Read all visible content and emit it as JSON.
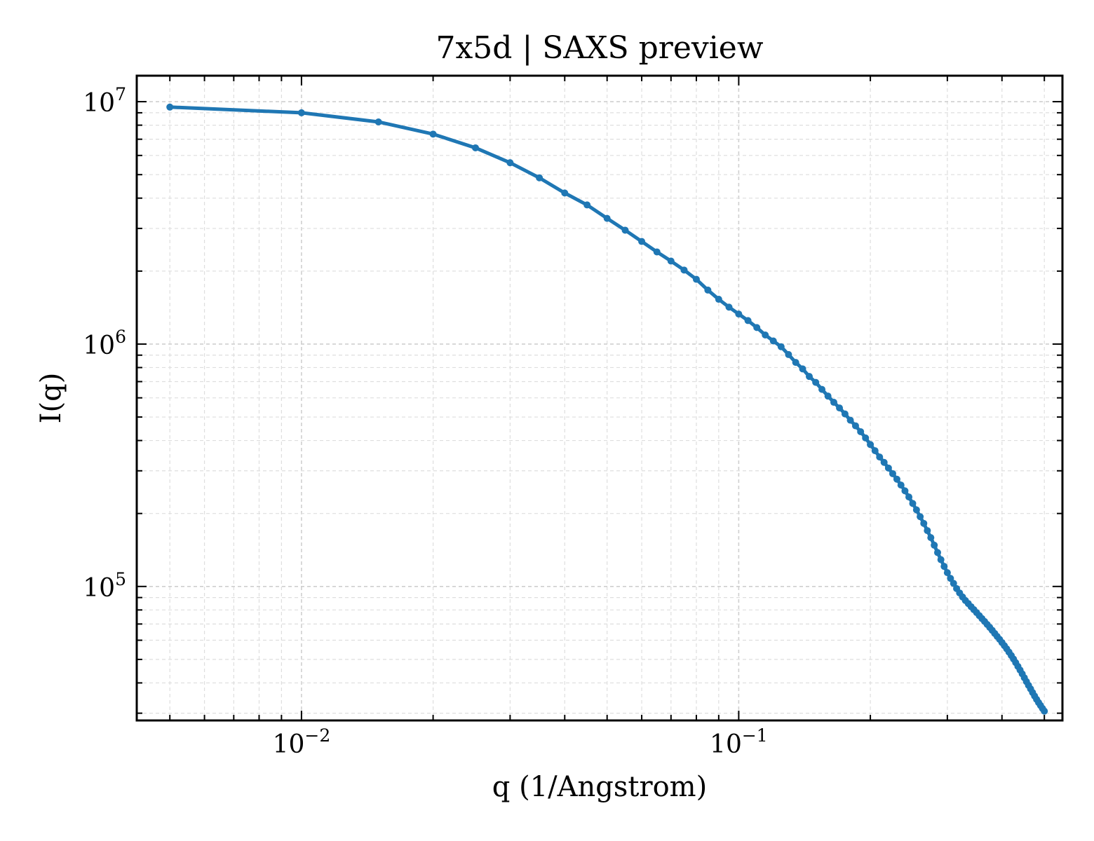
{
  "chart_data": {
    "type": "line",
    "title": "7x5d | SAXS preview",
    "xlabel": "q (1/Angstrom)",
    "ylabel": "I(q)",
    "x_scale": "log",
    "y_scale": "log",
    "xlim": [
      0.0042,
      0.55
    ],
    "ylim": [
      28000,
      12800000
    ],
    "grid": true,
    "x_ticks": [
      {
        "value": 0.01,
        "base": "10",
        "exp": "−2"
      },
      {
        "value": 0.1,
        "base": "10",
        "exp": "−1"
      }
    ],
    "y_ticks": [
      {
        "value": 100000,
        "base": "10",
        "exp": "5"
      },
      {
        "value": 1000000,
        "base": "10",
        "exp": "6"
      },
      {
        "value": 10000000,
        "base": "10",
        "exp": "7"
      }
    ],
    "line_color": "#1f77b4",
    "series": [
      {
        "x": [
          0.005,
          0.01,
          0.015,
          0.02,
          0.025,
          0.03,
          0.035,
          0.04,
          0.045,
          0.05,
          0.055,
          0.06,
          0.065,
          0.07,
          0.075,
          0.08,
          0.085,
          0.09,
          0.095,
          0.1,
          0.105,
          0.11,
          0.115,
          0.12,
          0.125,
          0.13,
          0.135,
          0.14,
          0.145,
          0.15,
          0.155,
          0.16,
          0.165,
          0.17,
          0.175,
          0.18,
          0.185,
          0.19,
          0.195,
          0.2,
          0.205,
          0.21,
          0.215,
          0.22,
          0.225,
          0.23,
          0.235,
          0.24,
          0.245,
          0.25,
          0.255,
          0.26,
          0.265,
          0.27,
          0.275,
          0.28,
          0.285,
          0.29,
          0.295,
          0.3,
          0.305,
          0.31,
          0.315,
          0.32,
          0.325,
          0.33,
          0.335,
          0.34,
          0.345,
          0.35,
          0.355,
          0.36,
          0.365,
          0.37,
          0.375,
          0.38,
          0.385,
          0.39,
          0.395,
          0.4,
          0.405,
          0.41,
          0.415,
          0.42,
          0.425,
          0.43,
          0.435,
          0.44,
          0.445,
          0.45,
          0.455,
          0.46,
          0.465,
          0.47,
          0.475,
          0.48,
          0.485,
          0.49,
          0.495,
          0.5
        ],
        "y": [
          9500000.0,
          9000000.0,
          8250000.0,
          7350000.0,
          6450000.0,
          5600000.0,
          4850000.0,
          4200000.0,
          3750000.0,
          3300000.0,
          2950000.0,
          2650000.0,
          2400000.0,
          2200000.0,
          2020000.0,
          1850000.0,
          1670000.0,
          1530000.0,
          1420000.0,
          1330000.0,
          1250000.0,
          1170000.0,
          1090000.0,
          1030000.0,
          975000.0,
          905000.0,
          840000.0,
          790000.0,
          735000.0,
          695000.0,
          650000.0,
          610000.0,
          575000.0,
          545000.0,
          515000.0,
          485000.0,
          460000.0,
          435000.0,
          410000.0,
          385000.0,
          363000.0,
          342000.0,
          325000.0,
          308000.0,
          292000.0,
          277000.0,
          262000.0,
          248000.0,
          234000.0,
          220000.0,
          207000.0,
          194000.0,
          182000.0,
          170000.0,
          159000.0,
          148000.0,
          138000.0,
          129000.0,
          121000.0,
          114000.0,
          108000.0,
          103000.0,
          98000.0,
          94000.0,
          90500.0,
          87500.0,
          85000.0,
          82500.0,
          80200.0,
          78000.0,
          75800.0,
          73700.0,
          71700.0,
          69700.0,
          67800.0,
          65900.0,
          64000.0,
          62200.0,
          60500.0,
          58700.0,
          57000.0,
          55300.0,
          53600.0,
          51900.0,
          50200.0,
          48500.0,
          46800.0,
          45200.0,
          43600.0,
          42000.0,
          40500.0,
          39100.0,
          37800.0,
          36500.0,
          35300.0,
          34200.0,
          33200.0,
          32300.0,
          31400.0,
          30600.0
        ]
      }
    ]
  }
}
